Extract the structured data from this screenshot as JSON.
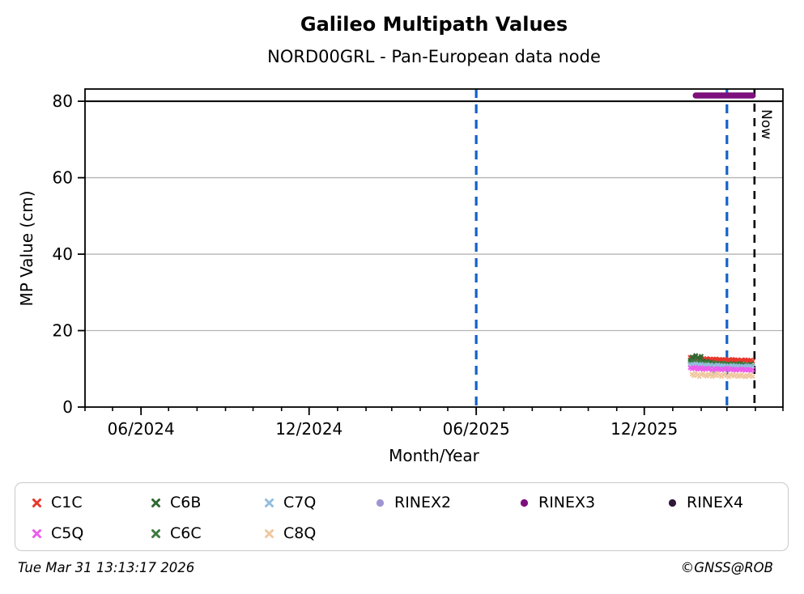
{
  "header": {
    "title": "Galileo Multipath Values",
    "subtitle": "NORD00GRL - Pan-European data node"
  },
  "footer": {
    "timestamp": "Tue Mar 31 13:13:17 2026",
    "credit": "©GNSS@ROB"
  },
  "legend": {
    "items": [
      {
        "label": "C1C",
        "marker": "x",
        "color": "#e8362b"
      },
      {
        "label": "C6B",
        "marker": "x",
        "color": "#2e6830"
      },
      {
        "label": "C7Q",
        "marker": "x",
        "color": "#94bddd"
      },
      {
        "label": "RINEX2",
        "marker": "circle",
        "color": "#9d96d2"
      },
      {
        "label": "RINEX3",
        "marker": "circle",
        "color": "#7c107c"
      },
      {
        "label": "RINEX4",
        "marker": "circle",
        "color": "#2e1738"
      },
      {
        "label": "C5Q",
        "marker": "x",
        "color": "#ec5cec"
      },
      {
        "label": "C6C",
        "marker": "x",
        "color": "#3e7a40"
      },
      {
        "label": "C8Q",
        "marker": "x",
        "color": "#f0c8a0"
      }
    ]
  },
  "chart_data": {
    "type": "scatter",
    "title": "Galileo Multipath Values",
    "subtitle": "NORD00GRL - Pan-European data node",
    "xlabel": "Month/Year",
    "ylabel": "MP Value (cm)",
    "x_unit": "days since 2024-04-01",
    "xlim": [
      0,
      760
    ],
    "ylim": [
      0,
      83.2
    ],
    "grid": "horizontal-only",
    "legend_position": "bottom",
    "y_ticks": [
      0,
      20,
      40,
      60,
      80
    ],
    "x_major_ticks": [
      {
        "day": 61,
        "label": "06/2024"
      },
      {
        "day": 244,
        "label": "12/2024"
      },
      {
        "day": 426,
        "label": "06/2025"
      },
      {
        "day": 609,
        "label": "12/2025"
      }
    ],
    "x_minor_tick_days": [
      0,
      30,
      61,
      91,
      122,
      153,
      183,
      214,
      244,
      275,
      306,
      334,
      365,
      395,
      426,
      456,
      487,
      518,
      548,
      579,
      609,
      640,
      671,
      699,
      730,
      760
    ],
    "threshold_line": {
      "y": 80,
      "color": "#000000",
      "style": "solid"
    },
    "event_lines": [
      {
        "day": 426,
        "date": "06/2025",
        "color": "#1461c8",
        "style": "dashed"
      },
      {
        "day": 699,
        "date": "03/2026",
        "color": "#1461c8",
        "style": "dashed"
      }
    ],
    "now_line": {
      "day": 729,
      "label": "Now",
      "color": "#000000",
      "style": "dashed"
    },
    "series": [
      {
        "name": "C1C",
        "marker": "x",
        "color": "#e8362b",
        "day_start": 659,
        "day_step": 2,
        "values": [
          13.0,
          12.6,
          12.8,
          13.2,
          12.7,
          12.5,
          12.8,
          12.6,
          12.4,
          12.7,
          12.5,
          12.6,
          12.3,
          12.5,
          12.6,
          12.4,
          12.5,
          12.3,
          12.4,
          12.5,
          12.2,
          12.4,
          12.3,
          12.5,
          12.3,
          12.2,
          12.4,
          12.1,
          12.3,
          12.2,
          12.4,
          12.2,
          12.1,
          12.3,
          12.0
        ]
      },
      {
        "name": "C6B",
        "marker": "x",
        "color": "#2e6830",
        "points": [
          [
            659,
            12.2
          ],
          [
            661,
            13.1
          ],
          [
            663,
            12.6
          ],
          [
            665,
            13.5
          ],
          [
            667,
            12.9
          ],
          [
            669,
            12.4
          ],
          [
            671,
            13.3
          ],
          [
            673,
            12.1
          ],
          [
            675,
            11.6
          ],
          [
            677,
            12.0
          ],
          [
            679,
            11.3
          ],
          [
            681,
            11.8
          ],
          [
            683,
            11.2
          ],
          [
            685,
            8.6
          ],
          [
            687,
            11.5
          ],
          [
            689,
            11.0
          ],
          [
            691,
            11.4
          ],
          [
            693,
            10.9
          ],
          [
            697,
            11.2
          ],
          [
            701,
            11.0
          ],
          [
            705,
            11.3
          ],
          [
            709,
            11.1
          ],
          [
            713,
            11.4
          ],
          [
            717,
            11.2
          ],
          [
            721,
            11.0
          ],
          [
            725,
            11.3
          ]
        ]
      },
      {
        "name": "C6C",
        "marker": "x",
        "color": "#3e7a40",
        "day_start": 659,
        "day_step": 2,
        "values": [
          11.8,
          11.5,
          12.0,
          11.3,
          11.7,
          11.9,
          11.4,
          11.6,
          11.2,
          11.5,
          11.7,
          11.3,
          11.1,
          11.4,
          11.6,
          11.2,
          11.0,
          11.3,
          11.5,
          11.1,
          11.2,
          11.4,
          11.0,
          11.2,
          11.3,
          10.9,
          11.1,
          11.2,
          11.0,
          11.3,
          10.9,
          11.1,
          11.0,
          11.2,
          10.8
        ]
      },
      {
        "name": "C7Q",
        "marker": "x",
        "color": "#94bddd",
        "day_start": 659,
        "day_step": 2,
        "values": [
          11.2,
          10.9,
          11.1,
          11.3,
          10.8,
          11.0,
          11.2,
          10.7,
          10.9,
          11.1,
          10.8,
          11.0,
          10.6,
          10.9,
          10.7,
          11.0,
          10.8,
          10.6,
          10.9,
          10.7,
          10.5,
          10.8,
          10.6,
          10.9,
          10.7,
          10.5,
          10.8,
          10.6,
          10.4,
          10.7,
          10.5,
          10.8,
          10.6,
          10.4,
          10.7
        ]
      },
      {
        "name": "C5Q",
        "marker": "x",
        "color": "#ec5cec",
        "day_start": 659,
        "day_step": 2,
        "values": [
          10.3,
          10.0,
          10.2,
          10.4,
          9.9,
          10.1,
          10.3,
          9.8,
          10.0,
          10.2,
          9.9,
          10.1,
          9.7,
          10.0,
          9.8,
          10.1,
          9.9,
          9.7,
          10.0,
          9.8,
          10.2,
          9.9,
          9.7,
          10.0,
          9.8,
          9.6,
          9.9,
          9.7,
          10.0,
          9.8,
          9.6,
          9.9,
          9.7,
          9.5,
          9.8
        ]
      },
      {
        "name": "C8Q",
        "marker": "x",
        "color": "#f0c8a0",
        "day_start": 661,
        "day_step": 2,
        "values": [
          8.6,
          8.2,
          8.8,
          8.4,
          8.0,
          8.5,
          8.7,
          8.3,
          8.1,
          8.6,
          8.4,
          8.0,
          8.5,
          8.2,
          8.7,
          8.3,
          8.0,
          8.4,
          8.6,
          8.2,
          7.9,
          8.3,
          8.5,
          8.1,
          8.4,
          8.0,
          8.2,
          8.5,
          8.1,
          7.9,
          8.3,
          8.1,
          8.4,
          8.0
        ]
      },
      {
        "name": "RINEX2",
        "marker": "circle",
        "color": "#9d96d2",
        "points": []
      },
      {
        "name": "RINEX3",
        "marker": "circle",
        "color": "#7c107c",
        "segment": {
          "y": 81.5,
          "day0": 665,
          "day1": 727
        }
      },
      {
        "name": "RINEX4",
        "marker": "circle",
        "color": "#2e1738",
        "points": []
      }
    ]
  }
}
